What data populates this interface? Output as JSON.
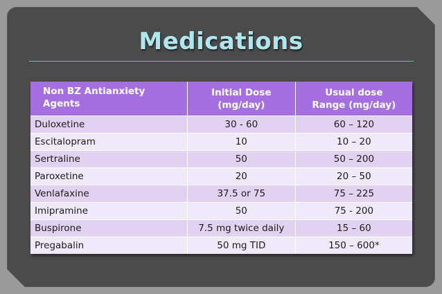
{
  "title": "Medications",
  "table": {
    "headers": [
      {
        "line1": "Non BZ Antianxiety Agents",
        "line2": ""
      },
      {
        "line1": "Initial Dose",
        "line2": "(mg/day)"
      },
      {
        "line1": "Usual dose",
        "line2": "Range (mg/day)"
      }
    ],
    "rows": [
      {
        "agent": "Duloxetine",
        "initial": "30 - 60",
        "usual": "60 – 120"
      },
      {
        "agent": "Escitalopram",
        "initial": "10",
        "usual": "10 – 20"
      },
      {
        "agent": "Sertraline",
        "initial": "50",
        "usual": "50 – 200"
      },
      {
        "agent": "Paroxetine",
        "initial": "20",
        "usual": "20 – 50"
      },
      {
        "agent": "Venlafaxine",
        "initial": "37.5 or 75",
        "usual": "75 – 225"
      },
      {
        "agent": "Imipramine",
        "initial": "50",
        "usual": "75 - 200"
      },
      {
        "agent": "Buspirone",
        "initial": "7.5 mg twice daily",
        "usual": "15 – 60"
      },
      {
        "agent": "Pregabalin",
        "initial": "50 mg TID",
        "usual": "150 – 600*"
      }
    ]
  }
}
